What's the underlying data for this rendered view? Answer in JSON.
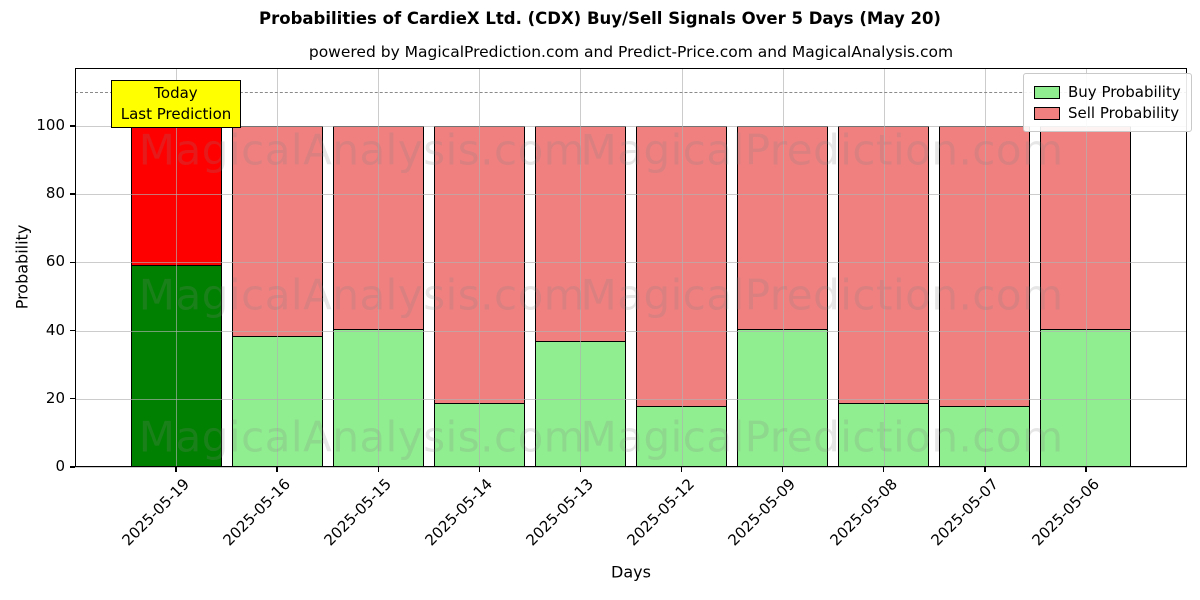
{
  "title": "Probabilities of CardieX Ltd. (CDX) Buy/Sell Signals Over 5 Days (May 20)",
  "subtitle": "powered by MagicalPrediction.com and Predict-Price.com and MagicalAnalysis.com",
  "annotation": {
    "line1": "Today",
    "line2": "Last Prediction",
    "bg_color": "#ffff00"
  },
  "legend": {
    "position": "upper right",
    "items": [
      {
        "label": "Buy Probability",
        "color": "#90ee90"
      },
      {
        "label": "Sell Probability",
        "color": "#f08080"
      }
    ]
  },
  "watermarks": {
    "left_text": "MagicalAnalysis.com",
    "right_text": "MagicalPrediction.com"
  },
  "colors": {
    "buy": "#90ee90",
    "sell": "#f08080",
    "buy_today": "#008000",
    "sell_today": "#ff0000",
    "grid": "#b0b0b0",
    "dashed_line": "#8a8a8a",
    "watermark": "#808080"
  },
  "chart_data": {
    "type": "bar",
    "stacked": true,
    "title": "Probabilities of CardieX Ltd. (CDX) Buy/Sell Signals Over 5 Days (May 20)",
    "xlabel": "Days",
    "ylabel": "Probability",
    "categories": [
      "2025-05-19",
      "2025-05-16",
      "2025-05-15",
      "2025-05-14",
      "2025-05-13",
      "2025-05-12",
      "2025-05-09",
      "2025-05-08",
      "2025-05-07",
      "2025-05-06"
    ],
    "series": [
      {
        "name": "Buy Probability",
        "values": [
          59.5,
          38.5,
          40.5,
          19,
          37,
          18,
          40.5,
          19,
          18,
          40.5
        ]
      },
      {
        "name": "Sell Probability",
        "values": [
          40.5,
          61.5,
          59.5,
          81,
          63,
          82,
          59.5,
          81,
          82,
          59.5
        ]
      }
    ],
    "today_index": 0,
    "yticks": [
      0,
      20,
      40,
      60,
      80,
      100
    ],
    "ylim": [
      0,
      117
    ],
    "dashed_line_y": 110,
    "grid": true,
    "legend_position": "upper right"
  }
}
